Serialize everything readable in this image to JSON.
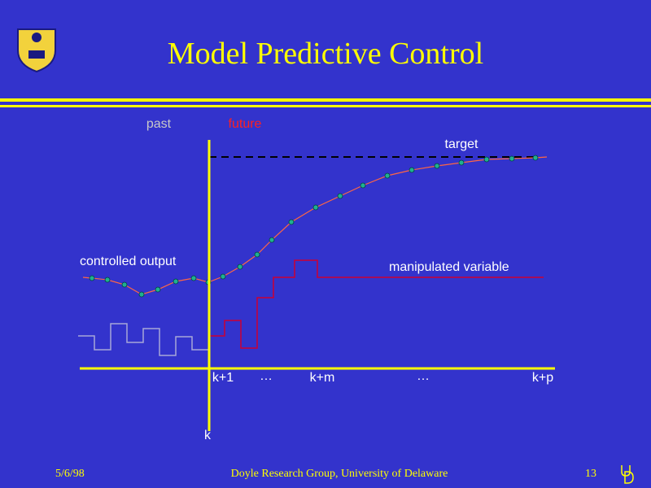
{
  "header": {
    "title": "Model Predictive Control"
  },
  "labels": {
    "past": "past",
    "future": "future",
    "target": "target",
    "controlled_output": "controlled output",
    "manipulated_variable": "manipulated variable",
    "k": "k"
  },
  "axis_labels": [
    "k+1",
    "…",
    "k+m",
    "…",
    "k+p"
  ],
  "footer": {
    "date": "5/6/98",
    "group": "Doyle Research Group, University of Delaware",
    "page": "13"
  }
}
